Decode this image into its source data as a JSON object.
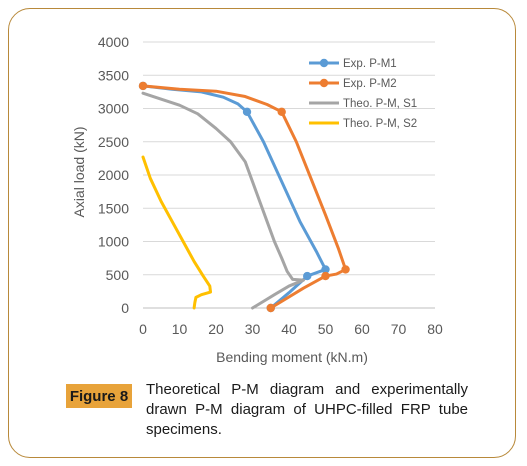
{
  "chart_data": {
    "type": "line",
    "title": "",
    "xlabel": "Bending moment (kN.m)",
    "ylabel": "Axial load (kN)",
    "xlim": [
      0,
      80
    ],
    "ylim": [
      0,
      4000
    ],
    "xticks": [
      "0",
      "10",
      "20",
      "30",
      "40",
      "50",
      "60",
      "70",
      "80"
    ],
    "yticks": [
      "0",
      "500",
      "1000",
      "1500",
      "2000",
      "2500",
      "3000",
      "3500",
      "4000"
    ],
    "grid": "horizontal",
    "legend_position": "top-right",
    "series": [
      {
        "name": "Exp. P-M1",
        "color": "#5b9bd5",
        "markers": true,
        "points": [
          [
            0,
            3340
          ],
          [
            28.5,
            2950
          ],
          [
            50,
            580
          ],
          [
            45,
            480
          ],
          [
            35,
            0
          ]
        ],
        "curve": [
          [
            0,
            3340
          ],
          [
            8,
            3290
          ],
          [
            16,
            3250
          ],
          [
            22,
            3170
          ],
          [
            26,
            3070
          ],
          [
            28.5,
            2950
          ],
          [
            33,
            2500
          ],
          [
            38,
            1900
          ],
          [
            43,
            1300
          ],
          [
            47.5,
            850
          ],
          [
            50,
            580
          ],
          [
            45,
            480
          ],
          [
            40,
            230
          ],
          [
            35,
            0
          ]
        ]
      },
      {
        "name": "Exp. P-M2",
        "color": "#ed7d31",
        "markers": true,
        "points": [
          [
            0,
            3340
          ],
          [
            38,
            2950
          ],
          [
            55.5,
            580
          ],
          [
            50,
            480
          ],
          [
            35,
            0
          ]
        ],
        "curve": [
          [
            0,
            3340
          ],
          [
            10,
            3290
          ],
          [
            20,
            3260
          ],
          [
            28,
            3180
          ],
          [
            34,
            3060
          ],
          [
            38,
            2950
          ],
          [
            42,
            2500
          ],
          [
            46,
            1950
          ],
          [
            50,
            1400
          ],
          [
            53.5,
            900
          ],
          [
            55.5,
            580
          ],
          [
            53,
            510
          ],
          [
            50,
            480
          ],
          [
            44,
            300
          ],
          [
            38,
            100
          ],
          [
            35,
            0
          ]
        ]
      },
      {
        "name": "Theo. P-M, S1",
        "color": "#a5a5a5",
        "markers": false,
        "points": [
          [
            0,
            3230
          ],
          [
            10,
            3050
          ],
          [
            20,
            2700
          ],
          [
            28,
            2200
          ],
          [
            32,
            1600
          ],
          [
            36,
            1000
          ],
          [
            39,
            600
          ],
          [
            41,
            430
          ],
          [
            44,
            420
          ],
          [
            37,
            230
          ],
          [
            30,
            0
          ]
        ],
        "curve": [
          [
            0,
            3230
          ],
          [
            5,
            3140
          ],
          [
            10,
            3050
          ],
          [
            15,
            2920
          ],
          [
            20,
            2700
          ],
          [
            24,
            2500
          ],
          [
            28,
            2200
          ],
          [
            30,
            1900
          ],
          [
            32,
            1600
          ],
          [
            34,
            1300
          ],
          [
            36,
            1000
          ],
          [
            38,
            750
          ],
          [
            39.5,
            550
          ],
          [
            41,
            430
          ],
          [
            44,
            420
          ],
          [
            40,
            330
          ],
          [
            36,
            200
          ],
          [
            33,
            100
          ],
          [
            30,
            0
          ]
        ]
      },
      {
        "name": "Theo. P-M, S2",
        "color": "#ffc000",
        "markers": false,
        "points": [
          [
            0,
            2270
          ],
          [
            10,
            1150
          ],
          [
            18,
            380
          ],
          [
            18.5,
            230
          ],
          [
            14.5,
            150
          ],
          [
            14,
            0
          ]
        ],
        "curve": [
          [
            0,
            2270
          ],
          [
            2,
            1950
          ],
          [
            5,
            1600
          ],
          [
            8,
            1300
          ],
          [
            11,
            1000
          ],
          [
            14,
            700
          ],
          [
            16.5,
            480
          ],
          [
            18.3,
            330
          ],
          [
            18.5,
            240
          ],
          [
            16,
            200
          ],
          [
            14.5,
            160
          ],
          [
            14.2,
            80
          ],
          [
            14,
            0
          ]
        ]
      }
    ]
  },
  "caption": {
    "label": "Figure 8",
    "text": "Theoretical P-M diagram and experimentally drawn P-M diagram of UHPC-filled FRP tube specimens."
  }
}
